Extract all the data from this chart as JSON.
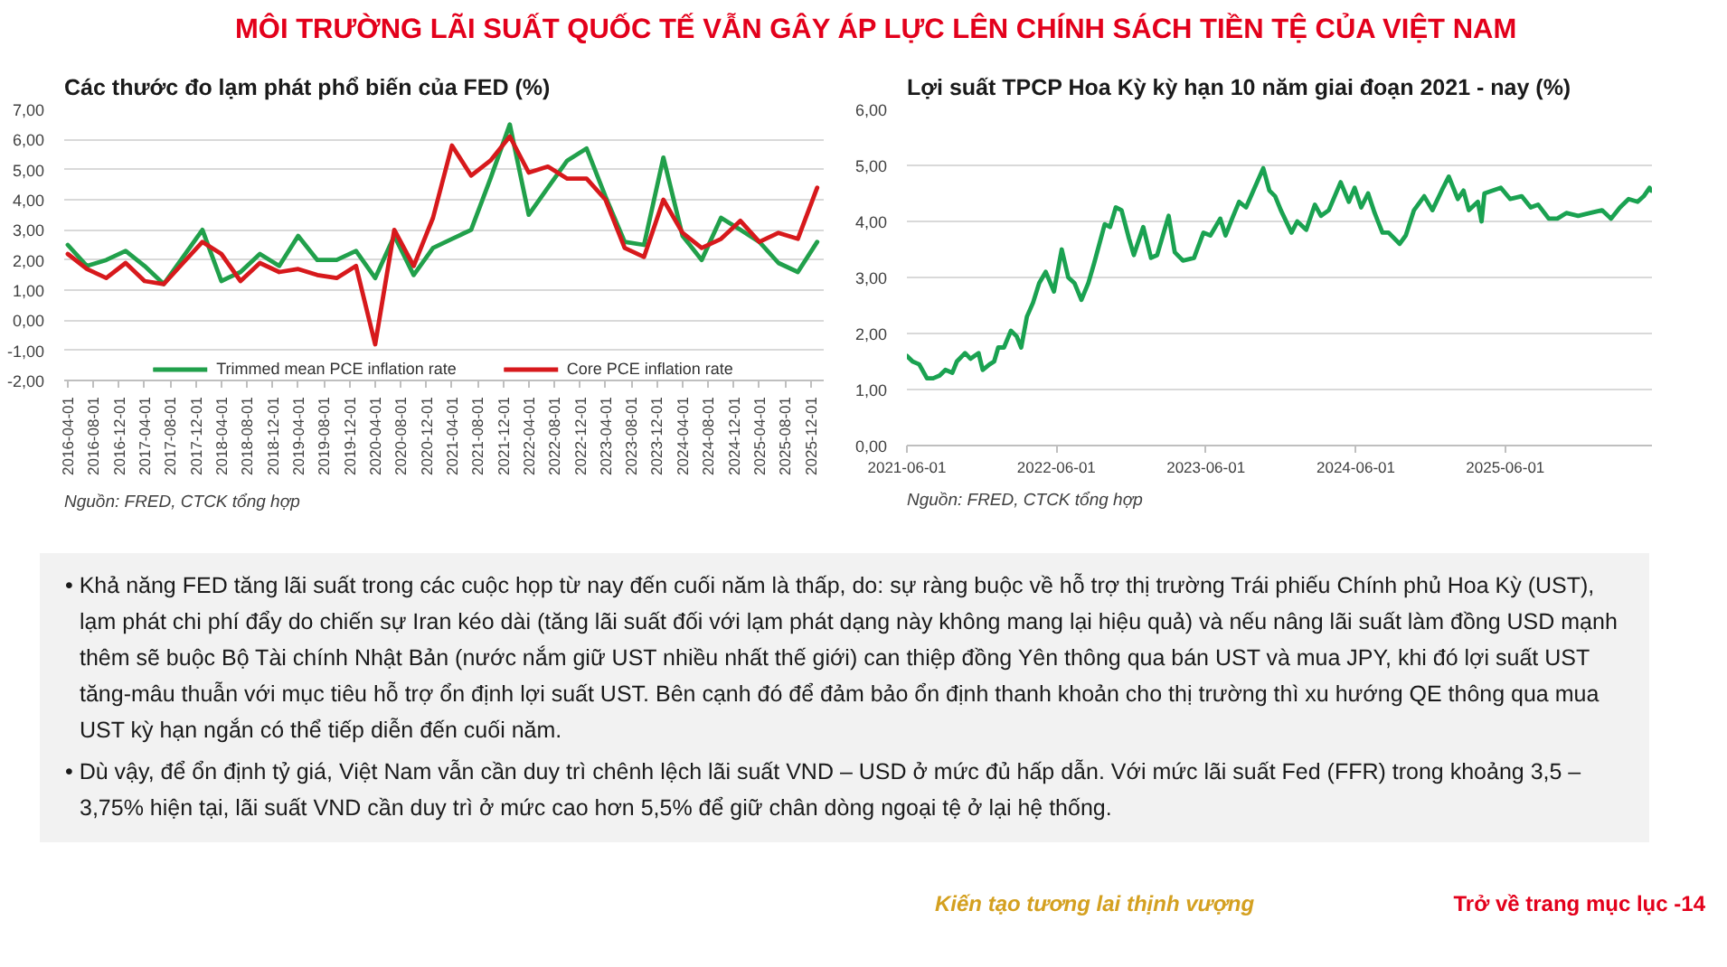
{
  "chart_data": [
    {
      "type": "other",
      "title": "MÔI TRƯỜNG LÃI SUẤT QUỐC TẾ VẪN GÂY ÁP LỰC LÊN CHÍNH SÁCH TIỀN TỆ CỦA VIỆT NAM"
    },
    {
      "type": "line",
      "title": "Các thước đo lạm phát phổ biến của FED (%)",
      "x": [
        "2016-04-01",
        "2016-07-01",
        "2016-10-01",
        "2017-01-01",
        "2017-04-01",
        "2017-07-01",
        "2017-10-01",
        "2018-01-01",
        "2018-04-01",
        "2018-07-01",
        "2018-10-01",
        "2019-01-01",
        "2019-04-01",
        "2019-07-01",
        "2019-10-01",
        "2020-01-01",
        "2020-04-01",
        "2020-07-01",
        "2020-10-01",
        "2021-01-01",
        "2021-04-01",
        "2021-07-01",
        "2021-10-01",
        "2022-01-01",
        "2022-04-01",
        "2022-07-01",
        "2022-10-01",
        "2023-01-01",
        "2023-04-01",
        "2023-07-01",
        "2023-10-01",
        "2024-01-01",
        "2024-04-01",
        "2024-07-01",
        "2024-10-01",
        "2025-01-01",
        "2025-04-01",
        "2025-07-01",
        "2025-10-01",
        "2026-01-01"
      ],
      "series": [
        {
          "name": "Trimmed mean PCE inflation rate",
          "color": "#21a04b",
          "values": [
            2.5,
            1.8,
            2.0,
            2.3,
            1.8,
            1.2,
            2.1,
            3.0,
            1.3,
            1.6,
            2.2,
            1.8,
            2.8,
            2.0,
            2.0,
            2.3,
            1.4,
            2.8,
            1.5,
            2.4,
            2.7,
            3.0,
            4.7,
            6.5,
            3.5,
            4.4,
            5.3,
            5.7,
            4.1,
            2.6,
            2.5,
            5.4,
            2.8,
            2.0,
            3.4,
            3.0,
            2.6,
            1.9,
            1.6,
            2.6
          ]
        },
        {
          "name": "Core PCE inflation rate",
          "color": "#d7191c",
          "values": [
            2.2,
            1.7,
            1.4,
            1.9,
            1.3,
            1.2,
            1.9,
            2.6,
            2.2,
            1.3,
            1.9,
            1.6,
            1.7,
            1.5,
            1.4,
            1.8,
            -0.8,
            3.0,
            1.8,
            3.4,
            5.8,
            4.8,
            5.3,
            6.1,
            4.9,
            5.1,
            4.7,
            4.7,
            4.0,
            2.4,
            2.1,
            4.0,
            2.9,
            2.4,
            2.7,
            3.3,
            2.6,
            2.9,
            2.7,
            4.4
          ]
        }
      ],
      "xlim": [
        "2016-03-15",
        "2026-02-01"
      ],
      "xticks": [
        "2016-04-01",
        "2016-08-01",
        "2016-12-01",
        "2017-04-01",
        "2017-08-01",
        "2017-12-01",
        "2018-04-01",
        "2018-08-01",
        "2018-12-01",
        "2019-04-01",
        "2019-08-01",
        "2019-12-01",
        "2020-04-01",
        "2020-08-01",
        "2020-12-01",
        "2021-04-01",
        "2021-08-01",
        "2021-12-01",
        "2022-04-01",
        "2022-08-01",
        "2022-12-01",
        "2023-04-01",
        "2023-08-01",
        "2023-12-01",
        "2024-04-01",
        "2024-08-01",
        "2024-12-01",
        "2025-04-01",
        "2025-08-01",
        "2025-12-01"
      ],
      "ylim": [
        -2,
        7
      ],
      "yticks": [
        {
          "value": -2,
          "label": "-2,00"
        },
        {
          "value": -1,
          "label": "-1,00"
        },
        {
          "value": 0,
          "label": "0,00"
        },
        {
          "value": 1,
          "label": "1,00"
        },
        {
          "value": 2,
          "label": "2,00"
        },
        {
          "value": 3,
          "label": "3,00"
        },
        {
          "value": 4,
          "label": "4,00"
        },
        {
          "value": 5,
          "label": "5,00"
        },
        {
          "value": 6,
          "label": "6,00"
        },
        {
          "value": 7,
          "label": "7,00"
        }
      ],
      "grid": "y",
      "legend": "bottom",
      "annotations": [
        "Nguồn: FRED, CTCK tổng hợp"
      ]
    },
    {
      "type": "line",
      "title": "Lợi suất TPCP Hoa Kỳ kỳ hạn 10 năm giai đoạn 2021 - nay (%)",
      "x": [
        "2021-06-01",
        "2021-06-15",
        "2021-07-01",
        "2021-07-20",
        "2021-08-04",
        "2021-08-20",
        "2021-09-03",
        "2021-09-20",
        "2021-10-01",
        "2021-10-21",
        "2021-11-03",
        "2021-11-23",
        "2021-12-03",
        "2021-12-20",
        "2021-12-31",
        "2022-01-10",
        "2022-01-24",
        "2022-02-10",
        "2022-02-24",
        "2022-03-07",
        "2022-03-21",
        "2022-04-05",
        "2022-04-20",
        "2022-05-06",
        "2022-05-26",
        "2022-06-14",
        "2022-06-30",
        "2022-07-15",
        "2022-08-01",
        "2022-08-18",
        "2022-09-01",
        "2022-09-27",
        "2022-10-10",
        "2022-10-24",
        "2022-11-07",
        "2022-11-25",
        "2022-12-07",
        "2022-12-30",
        "2023-01-18",
        "2023-02-02",
        "2023-03-02",
        "2023-03-17",
        "2023-04-06",
        "2023-05-03",
        "2023-05-26",
        "2023-06-12",
        "2023-07-06",
        "2023-07-19",
        "2023-08-04",
        "2023-08-21",
        "2023-09-07",
        "2023-09-28",
        "2023-10-19",
        "2023-11-03",
        "2023-11-17",
        "2023-12-01",
        "2023-12-27",
        "2024-01-10",
        "2024-02-01",
        "2024-02-22",
        "2024-03-08",
        "2024-03-27",
        "2024-04-25",
        "2024-05-15",
        "2024-05-29",
        "2024-06-14",
        "2024-07-01",
        "2024-07-17",
        "2024-08-05",
        "2024-08-20",
        "2024-09-16",
        "2024-10-01",
        "2024-10-21",
        "2024-11-15",
        "2024-12-05",
        "2024-12-31",
        "2025-01-14",
        "2025-02-05",
        "2025-02-19",
        "2025-03-04",
        "2025-03-26",
        "2025-04-04",
        "2025-04-11",
        "2025-05-21",
        "2025-06-13",
        "2025-07-11",
        "2025-08-02",
        "2025-08-20",
        "2025-09-15",
        "2025-10-06",
        "2025-10-28",
        "2025-11-26",
        "2025-12-25",
        "2026-01-23",
        "2026-02-14",
        "2026-03-08",
        "2026-03-29",
        "2026-04-20",
        "2026-05-05",
        "2026-05-19",
        "2026-05-23"
      ],
      "series": [
        {
          "color": "#1aa251",
          "values": [
            1.6,
            1.5,
            1.45,
            1.2,
            1.2,
            1.25,
            1.35,
            1.3,
            1.5,
            1.65,
            1.55,
            1.65,
            1.35,
            1.45,
            1.5,
            1.75,
            1.75,
            2.05,
            1.95,
            1.75,
            2.3,
            2.55,
            2.9,
            3.1,
            2.75,
            3.5,
            3.0,
            2.9,
            2.6,
            2.9,
            3.25,
            3.95,
            3.9,
            4.25,
            4.2,
            3.7,
            3.4,
            3.9,
            3.35,
            3.4,
            4.1,
            3.45,
            3.3,
            3.35,
            3.8,
            3.75,
            4.05,
            3.75,
            4.05,
            4.35,
            4.25,
            4.6,
            4.95,
            4.55,
            4.45,
            4.2,
            3.8,
            4.0,
            3.85,
            4.3,
            4.1,
            4.2,
            4.7,
            4.35,
            4.6,
            4.25,
            4.5,
            4.15,
            3.8,
            3.8,
            3.6,
            3.75,
            4.2,
            4.45,
            4.2,
            4.6,
            4.8,
            4.4,
            4.55,
            4.2,
            4.35,
            4.0,
            4.5,
            4.6,
            4.4,
            4.45,
            4.25,
            4.3,
            4.05,
            4.05,
            4.15,
            4.1,
            4.15,
            4.2,
            4.05,
            4.25,
            4.4,
            4.35,
            4.45,
            4.6,
            4.55
          ]
        }
      ],
      "xlim": [
        "2021-06-01",
        "2026-05-25"
      ],
      "xticks": [
        "2021-06-01",
        "2022-06-01",
        "2023-06-01",
        "2024-06-01",
        "2025-06-01"
      ],
      "ylim": [
        0,
        6
      ],
      "yticks": [
        {
          "value": 0,
          "label": "0,00"
        },
        {
          "value": 1,
          "label": "1,00"
        },
        {
          "value": 2,
          "label": "2,00"
        },
        {
          "value": 3,
          "label": "3,00"
        },
        {
          "value": 4,
          "label": "4,00"
        },
        {
          "value": 5,
          "label": "5,00"
        },
        {
          "value": 6,
          "label": "6,00"
        }
      ],
      "grid": "y",
      "annotations": [
        "Nguồn: FRED, CTCK tổng hợp"
      ]
    },
    {
      "type": "other",
      "annotations": [
        "• Khả năng FED tăng lãi suất trong các cuộc họp từ nay đến cuối năm là thấp, do: sự ràng buộc về hỗ trợ thị trường Trái phiếu Chính phủ Hoa Kỳ (UST), lạm phát chi phí đẩy do chiến sự Iran kéo dài (tăng lãi suất đối với lạm phát dạng này không mang lại hiệu quả) và nếu nâng lãi suất làm đồng USD mạnh thêm sẽ buộc Bộ Tài chính Nhật Bản (nước nắm giữ UST nhiều nhất thế giới) can thiệp đồng Yên thông qua bán UST và mua JPY, khi đó lợi suất UST tăng-mâu thuẫn với mục tiêu hỗ trợ ổn định lợi suất UST. Bên cạnh đó để đảm bảo ổn định thanh khoản cho thị trường thì xu hướng QE thông qua mua UST kỳ hạn ngắn có thể tiếp diễn đến cuối năm.",
        "• Dù vậy, để ổn định tỷ giá, Việt Nam vẫn cần duy trì chênh lệch lãi suất VND – USD ở mức đủ hấp dẫn. Với mức lãi suất Fed (FFR) trong khoảng 3,5 – 3,75% hiện tại, lãi suất VND cần duy trì ở mức cao hơn 5,5% để giữ chân dòng ngoại tệ ở lại hệ thống.",
        "Kiến tạo tương lai thịnh vượng",
        "Trở về trang mục lục -14"
      ]
    }
  ]
}
